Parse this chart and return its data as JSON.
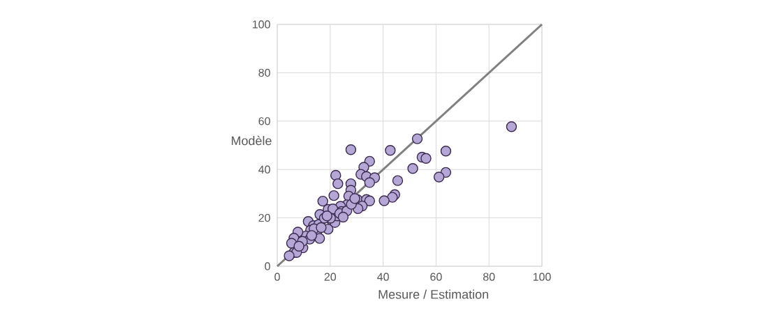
{
  "chart_data": {
    "type": "scatter",
    "xlabel": "Mesure / Estimation",
    "ylabel": "Modèle",
    "xlim": [
      0,
      100
    ],
    "ylim": [
      0,
      100
    ],
    "xticks": [
      0,
      20,
      40,
      60,
      80,
      100
    ],
    "yticks": [
      0,
      20,
      40,
      60,
      80,
      100
    ],
    "grid": true,
    "marker": "circle",
    "series": [
      {
        "type": "line",
        "color": "#808080",
        "x": [
          0,
          100
        ],
        "values": [
          0,
          100
        ],
        "marker": "none"
      },
      {
        "color": "#b4a7d6",
        "x": [
          88.5,
          52.9,
          63.7,
          42.7,
          27.8,
          54.7,
          56.2,
          51.2,
          63.7,
          61.1,
          45.5,
          44.4,
          43.5,
          40.4,
          34.9,
          32.7,
          31.6,
          33.7,
          36.8,
          34.9,
          22.1,
          22.9,
          27.8,
          27.8,
          27.0,
          21.4,
          17.2,
          30.3,
          33.7,
          34.9,
          32.1,
          30.5,
          26.3,
          23.9,
          24.3,
          16.1,
          19.2,
          20.7,
          21.8,
          19.2,
          22.7,
          11.7,
          13.7,
          15.7,
          12.6,
          15.0,
          16.0,
          10.8,
          12.3,
          9.7,
          7.8,
          6.3,
          5.4,
          6.3,
          7.3,
          4.5,
          21.0,
          23.6,
          26.3,
          20.1,
          17.8,
          18.8,
          28.0,
          29.3,
          24.9,
          13.9,
          16.6,
          9.5,
          8.2,
          13.0
        ],
        "values": [
          57.7,
          52.7,
          47.6,
          47.9,
          48.2,
          45.1,
          44.6,
          40.4,
          38.8,
          36.9,
          35.4,
          29.6,
          28.5,
          27.1,
          43.4,
          40.9,
          38.0,
          37.1,
          36.6,
          34.6,
          37.6,
          34.1,
          34.1,
          31.4,
          29.0,
          29.2,
          26.9,
          27.5,
          27.6,
          27.0,
          24.9,
          23.8,
          25.4,
          24.8,
          22.6,
          21.4,
          23.5,
          18.7,
          18.1,
          15.3,
          20.8,
          18.5,
          16.8,
          17.3,
          14.9,
          12.9,
          11.5,
          12.5,
          11.2,
          7.6,
          14.1,
          11.6,
          9.5,
          5.7,
          5.7,
          4.3,
          23.7,
          21.8,
          22.9,
          19.9,
          19.9,
          20.8,
          25.6,
          28.0,
          20.3,
          15.5,
          16.0,
          10.3,
          8.3,
          12.7
        ]
      }
    ]
  }
}
